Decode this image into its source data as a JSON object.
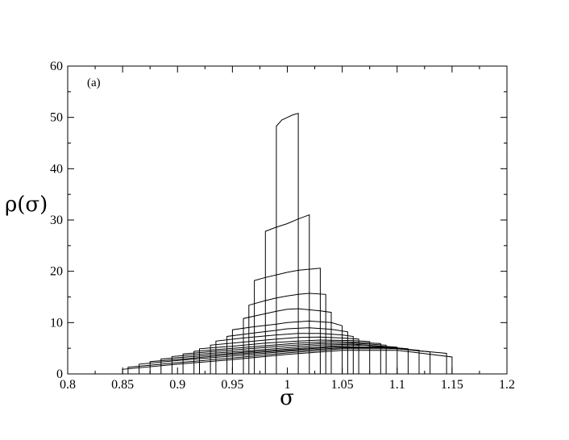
{
  "chart_data": {
    "type": "line",
    "title": "",
    "panel_label": "(a)",
    "xlabel": "σ",
    "ylabel": "ρ(σ)",
    "xlim": [
      0.8,
      1.2
    ],
    "ylim": [
      0,
      60
    ],
    "x_ticks": [
      "0.8",
      "0.85",
      "0.9",
      "0.95",
      "1",
      "1.05",
      "1.1",
      "1.15",
      "1.2"
    ],
    "y_ticks": [
      "0",
      "10",
      "20",
      "30",
      "40",
      "50",
      "60"
    ],
    "grid": false,
    "legend": "none",
    "line_color": "#000000",
    "series": [
      {
        "points": [
          [
            0.99,
            48.3
          ],
          [
            0.995,
            49.5
          ],
          [
            1.0,
            50.0
          ],
          [
            1.005,
            50.5
          ],
          [
            1.01,
            50.8
          ]
        ]
      },
      {
        "points": [
          [
            0.98,
            27.8
          ],
          [
            0.99,
            28.6
          ],
          [
            1.0,
            29.3
          ],
          [
            1.01,
            30.2
          ],
          [
            1.02,
            31.0
          ]
        ]
      },
      {
        "points": [
          [
            0.97,
            18.2
          ],
          [
            0.98,
            18.8
          ],
          [
            0.99,
            19.3
          ],
          [
            1.0,
            19.8
          ],
          [
            1.01,
            20.2
          ],
          [
            1.02,
            20.4
          ],
          [
            1.03,
            20.6
          ]
        ]
      },
      {
        "points": [
          [
            0.965,
            13.4
          ],
          [
            0.98,
            14.3
          ],
          [
            0.99,
            14.8
          ],
          [
            1.0,
            15.2
          ],
          [
            1.01,
            15.5
          ],
          [
            1.02,
            15.7
          ],
          [
            1.035,
            15.5
          ]
        ]
      },
      {
        "points": [
          [
            0.96,
            10.8
          ],
          [
            0.975,
            11.5
          ],
          [
            0.99,
            12.2
          ],
          [
            1.0,
            12.6
          ],
          [
            1.01,
            12.7
          ],
          [
            1.02,
            12.5
          ],
          [
            1.03,
            12.3
          ],
          [
            1.04,
            12.0
          ]
        ]
      },
      {
        "points": [
          [
            0.95,
            8.6
          ],
          [
            0.97,
            9.2
          ],
          [
            0.99,
            9.7
          ],
          [
            1.0,
            10.0
          ],
          [
            1.02,
            10.3
          ],
          [
            1.04,
            10.0
          ],
          [
            1.05,
            9.4
          ]
        ]
      },
      {
        "points": [
          [
            0.945,
            7.3
          ],
          [
            0.97,
            8.0
          ],
          [
            0.99,
            8.5
          ],
          [
            1.0,
            8.8
          ],
          [
            1.02,
            9.0
          ],
          [
            1.04,
            8.7
          ],
          [
            1.055,
            8.2
          ]
        ]
      },
      {
        "points": [
          [
            0.935,
            6.4
          ],
          [
            0.96,
            7.0
          ],
          [
            0.99,
            7.6
          ],
          [
            1.01,
            7.9
          ],
          [
            1.03,
            7.9
          ],
          [
            1.05,
            7.6
          ],
          [
            1.06,
            7.3
          ]
        ]
      },
      {
        "points": [
          [
            0.93,
            5.6
          ],
          [
            0.96,
            6.2
          ],
          [
            0.99,
            6.8
          ],
          [
            1.01,
            7.1
          ],
          [
            1.03,
            7.2
          ],
          [
            1.05,
            7.0
          ],
          [
            1.065,
            6.8
          ]
        ]
      },
      {
        "points": [
          [
            0.92,
            4.9
          ],
          [
            0.95,
            5.4
          ],
          [
            0.98,
            6.0
          ],
          [
            1.01,
            6.4
          ],
          [
            1.03,
            6.6
          ],
          [
            1.06,
            6.5
          ],
          [
            1.075,
            6.3
          ]
        ]
      },
      {
        "points": [
          [
            0.915,
            4.4
          ],
          [
            0.95,
            5.0
          ],
          [
            0.98,
            5.5
          ],
          [
            1.01,
            6.0
          ],
          [
            1.04,
            6.3
          ],
          [
            1.06,
            6.2
          ],
          [
            1.085,
            5.9
          ]
        ]
      },
      {
        "points": [
          [
            0.905,
            3.9
          ],
          [
            0.94,
            4.5
          ],
          [
            0.97,
            5.0
          ],
          [
            1.0,
            5.5
          ],
          [
            1.03,
            5.9
          ],
          [
            1.06,
            6.0
          ],
          [
            1.09,
            5.6
          ]
        ]
      },
      {
        "points": [
          [
            0.895,
            3.4
          ],
          [
            0.93,
            4.0
          ],
          [
            0.97,
            4.6
          ],
          [
            1.0,
            5.1
          ],
          [
            1.03,
            5.6
          ],
          [
            1.06,
            5.8
          ],
          [
            1.1,
            5.2
          ]
        ]
      },
      {
        "points": [
          [
            0.885,
            2.9
          ],
          [
            0.92,
            3.5
          ],
          [
            0.96,
            4.2
          ],
          [
            1.0,
            4.8
          ],
          [
            1.04,
            5.4
          ],
          [
            1.07,
            5.6
          ],
          [
            1.11,
            4.9
          ]
        ]
      },
      {
        "points": [
          [
            0.875,
            2.4
          ],
          [
            0.91,
            3.0
          ],
          [
            0.95,
            3.8
          ],
          [
            1.0,
            4.6
          ],
          [
            1.04,
            5.2
          ],
          [
            1.08,
            5.3
          ],
          [
            1.12,
            4.6
          ]
        ]
      },
      {
        "points": [
          [
            0.865,
            1.9
          ],
          [
            0.9,
            2.6
          ],
          [
            0.95,
            3.5
          ],
          [
            1.0,
            4.4
          ],
          [
            1.05,
            5.1
          ],
          [
            1.09,
            5.1
          ],
          [
            1.13,
            4.3
          ]
        ]
      },
      {
        "points": [
          [
            0.855,
            1.3
          ],
          [
            0.9,
            2.2
          ],
          [
            0.95,
            3.1
          ],
          [
            1.0,
            4.1
          ],
          [
            1.05,
            4.9
          ],
          [
            1.1,
            4.9
          ],
          [
            1.145,
            4.0
          ]
        ]
      },
      {
        "points": [
          [
            0.85,
            0.9
          ],
          [
            0.9,
            1.9
          ],
          [
            0.95,
            2.8
          ],
          [
            1.0,
            3.8
          ],
          [
            1.05,
            4.6
          ],
          [
            1.1,
            4.6
          ],
          [
            1.15,
            3.3
          ]
        ]
      }
    ]
  }
}
